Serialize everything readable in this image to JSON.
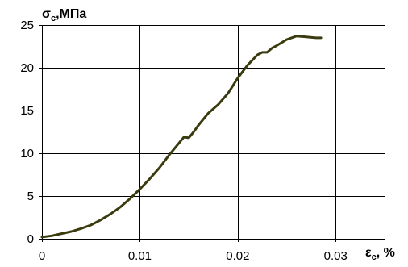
{
  "chart_data": {
    "type": "line",
    "title": "",
    "ylabel": {
      "base": "σ",
      "sub": "c",
      "rest": ",МПа"
    },
    "xlabel": {
      "base": "ε",
      "sub": "c",
      "rest": ", %"
    },
    "xlim": [
      0,
      0.035
    ],
    "ylim": [
      0,
      25
    ],
    "x_ticks": [
      0,
      0.01,
      0.02,
      0.03
    ],
    "x_tick_labels": [
      "0",
      "0.01",
      "0.02",
      "0.03"
    ],
    "y_ticks": [
      0,
      5,
      10,
      15,
      20,
      25
    ],
    "y_tick_labels": [
      "0",
      "5",
      "10",
      "15",
      "20",
      "25"
    ],
    "grid": true,
    "legend": "none",
    "series": [
      {
        "color": "#3b3b10",
        "x": [
          0,
          0.001,
          0.002,
          0.003,
          0.004,
          0.005,
          0.006,
          0.007,
          0.008,
          0.009,
          0.01,
          0.011,
          0.012,
          0.013,
          0.014,
          0.0145,
          0.015,
          0.0155,
          0.016,
          0.017,
          0.018,
          0.019,
          0.02,
          0.021,
          0.022,
          0.0225,
          0.023,
          0.0235,
          0.024,
          0.025,
          0.026,
          0.027,
          0.028,
          0.0285
        ],
        "y": [
          0.2,
          0.35,
          0.6,
          0.85,
          1.2,
          1.6,
          2.2,
          2.9,
          3.7,
          4.7,
          5.8,
          7.0,
          8.3,
          9.8,
          11.2,
          11.9,
          11.8,
          12.5,
          13.3,
          14.7,
          15.7,
          17.0,
          18.8,
          20.3,
          21.5,
          21.8,
          21.8,
          22.3,
          22.6,
          23.3,
          23.7,
          23.6,
          23.5,
          23.5
        ]
      }
    ]
  }
}
